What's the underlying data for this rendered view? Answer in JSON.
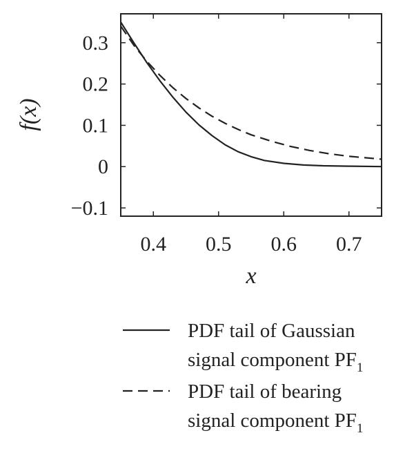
{
  "chart_data": {
    "type": "line",
    "xlabel": "x",
    "ylabel": "f(x)",
    "xlim": [
      0.35,
      0.75
    ],
    "ylim": [
      -0.12,
      0.37
    ],
    "x_ticks": [
      0.4,
      0.5,
      0.6,
      0.7
    ],
    "x_tick_labels": [
      "0.4",
      "0.5",
      "0.6",
      "0.7"
    ],
    "y_ticks": [
      -0.1,
      0,
      0.1,
      0.2,
      0.3
    ],
    "y_tick_labels": [
      "−0.1",
      "0",
      "0.1",
      "0.2",
      "0.3"
    ],
    "grid": false,
    "legend_position": "below",
    "series": [
      {
        "name": "PDF tail of Gaussian signal component PF1",
        "legend_line1": "PDF tail of Gaussian",
        "legend_line2": "signal component PF",
        "legend_subscript": "1",
        "style": "solid",
        "color": "#222222",
        "x": [
          0.35,
          0.37,
          0.39,
          0.41,
          0.43,
          0.45,
          0.47,
          0.49,
          0.51,
          0.53,
          0.55,
          0.57,
          0.6,
          0.63,
          0.66,
          0.7,
          0.75
        ],
        "y": [
          0.35,
          0.3,
          0.252,
          0.208,
          0.168,
          0.132,
          0.101,
          0.075,
          0.053,
          0.036,
          0.024,
          0.015,
          0.008,
          0.004,
          0.002,
          0.001,
          0.0
        ]
      },
      {
        "name": "PDF tail of bearing signal component PF1",
        "legend_line1": "PDF tail of bearing",
        "legend_line2": "signal component PF",
        "legend_subscript": "1",
        "style": "dashed",
        "color": "#222222",
        "x": [
          0.35,
          0.37,
          0.39,
          0.41,
          0.43,
          0.45,
          0.47,
          0.49,
          0.51,
          0.53,
          0.55,
          0.58,
          0.61,
          0.64,
          0.67,
          0.7,
          0.75
        ],
        "y": [
          0.34,
          0.294,
          0.255,
          0.221,
          0.191,
          0.165,
          0.142,
          0.122,
          0.105,
          0.09,
          0.077,
          0.062,
          0.049,
          0.039,
          0.031,
          0.025,
          0.018
        ]
      }
    ]
  }
}
